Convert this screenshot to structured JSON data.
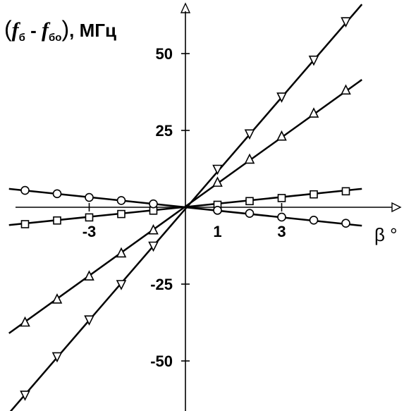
{
  "chart_data": {
    "type": "line",
    "title": "",
    "ylabel": {
      "open": "(",
      "f1": "f",
      "sub1": "б",
      "minus": " - ",
      "f2": "f",
      "sub2": "бо",
      "close": ")",
      "unit": ", МГц"
    },
    "xlabel": "β °",
    "xlim": [
      -5.5,
      5.5
    ],
    "ylim": [
      -66,
      68
    ],
    "x_ticks": [
      {
        "value": -3,
        "label": "-3"
      },
      {
        "value": 1,
        "label": "1"
      },
      {
        "value": 3,
        "label": "3"
      }
    ],
    "y_ticks": [
      {
        "value": 50,
        "label": "50"
      },
      {
        "value": 25,
        "label": "25"
      },
      {
        "value": -25,
        "label": "-25"
      },
      {
        "value": -50,
        "label": "-50"
      }
    ],
    "grid": false,
    "series": [
      {
        "marker": "triangle-down",
        "points": [
          {
            "x": -5,
            "y": -61
          },
          {
            "x": -4,
            "y": -48.5
          },
          {
            "x": -3,
            "y": -36.5
          },
          {
            "x": -2,
            "y": -25
          },
          {
            "x": -1,
            "y": -12.5
          },
          {
            "x": 1,
            "y": 12.5
          },
          {
            "x": 2,
            "y": 24
          },
          {
            "x": 3,
            "y": 36
          },
          {
            "x": 4,
            "y": 48
          },
          {
            "x": 5,
            "y": 60.5
          }
        ],
        "line": [
          {
            "x": -5.5,
            "y": -67
          },
          {
            "x": 5.5,
            "y": 66
          }
        ]
      },
      {
        "marker": "triangle-up",
        "points": [
          {
            "x": -5,
            "y": -37.5
          },
          {
            "x": -4,
            "y": -30
          },
          {
            "x": -3,
            "y": -22.5
          },
          {
            "x": -2,
            "y": -15
          },
          {
            "x": -1,
            "y": -7.5
          },
          {
            "x": 1,
            "y": 8
          },
          {
            "x": 2,
            "y": 15.5
          },
          {
            "x": 3,
            "y": 23
          },
          {
            "x": 4,
            "y": 30.5
          },
          {
            "x": 5,
            "y": 38
          }
        ],
        "line": [
          {
            "x": -5.5,
            "y": -41
          },
          {
            "x": 5.5,
            "y": 41.5
          }
        ]
      },
      {
        "marker": "square",
        "points": [
          {
            "x": -5,
            "y": -5.5
          },
          {
            "x": -4,
            "y": -4.3
          },
          {
            "x": -3,
            "y": -3.3
          },
          {
            "x": -2,
            "y": -2.2
          },
          {
            "x": -1,
            "y": -1.1
          },
          {
            "x": 1,
            "y": 0.8
          },
          {
            "x": 2,
            "y": 2
          },
          {
            "x": 3,
            "y": 3
          },
          {
            "x": 4,
            "y": 4.2
          },
          {
            "x": 5,
            "y": 5.2
          }
        ],
        "line": [
          {
            "x": -5.5,
            "y": -5.8
          },
          {
            "x": 5.5,
            "y": 6
          }
        ]
      },
      {
        "marker": "circle",
        "points": [
          {
            "x": -5,
            "y": 5.5
          },
          {
            "x": -4,
            "y": 4.4
          },
          {
            "x": -3,
            "y": 3.2
          },
          {
            "x": -2,
            "y": 2.2
          },
          {
            "x": -1,
            "y": 1.1
          },
          {
            "x": 1,
            "y": -1
          },
          {
            "x": 2,
            "y": -2
          },
          {
            "x": 3,
            "y": -3.2
          },
          {
            "x": 4,
            "y": -4.2
          },
          {
            "x": 5,
            "y": -5.2
          }
        ],
        "line": [
          {
            "x": -5.5,
            "y": 6
          },
          {
            "x": 5.5,
            "y": -6
          }
        ]
      }
    ]
  }
}
